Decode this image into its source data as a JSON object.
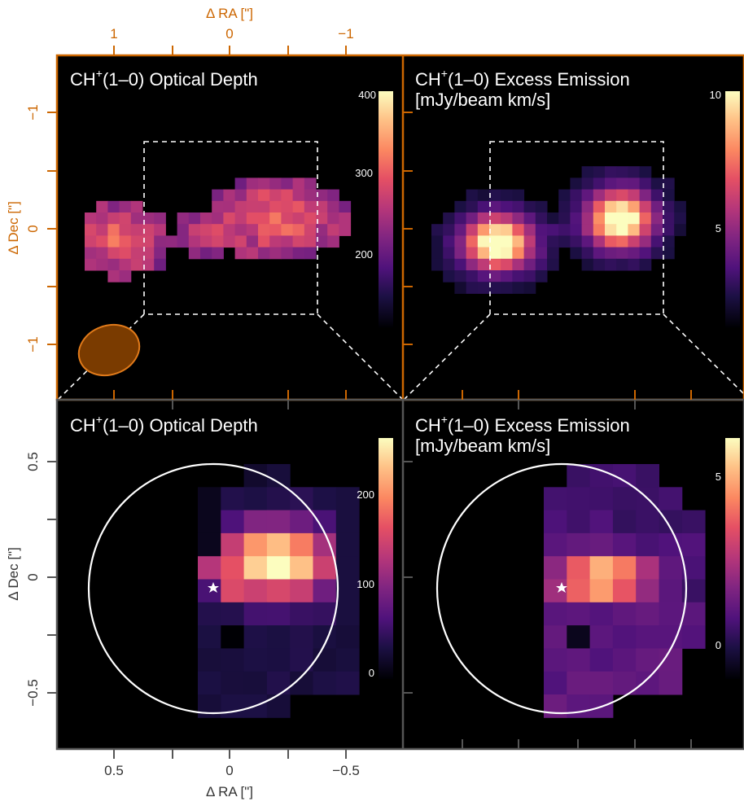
{
  "colors": {
    "top_axis": "#cc6600",
    "bottom_axis": "#555555",
    "background": "#000000",
    "beam_fill": "#7a3b00",
    "beam_edge": "#e07a1a"
  },
  "chart_data": [
    {
      "type": "heatmap",
      "title": "CH⁺(1–0) Optical Depth",
      "title_main": "CH",
      "title_sup": "+",
      "title_rest": "(1–0) Optical Depth",
      "xlabel": "Δ RA [\"]",
      "ylabel": "Δ Dec [\"]",
      "x_ticks": [
        "1",
        "0",
        "−1"
      ],
      "y_ticks": [
        "−1",
        "0",
        "−1"
      ],
      "colorbar": {
        "colormap": "magma",
        "range": [
          100,
          400
        ],
        "ticks": [
          "400",
          "300",
          "200"
        ]
      },
      "features": [
        "dashed zoom box",
        "synthesized beam ellipse (lower left)"
      ]
    },
    {
      "type": "heatmap",
      "title": "CH⁺(1–0) Excess Emission [mJy/beam km/s]",
      "title_main": "CH",
      "title_sup": "+",
      "title_rest": "(1–0) Excess Emission",
      "title_line2": "[mJy/beam km/s]",
      "colorbar": {
        "colormap": "magma",
        "range": [
          0,
          10
        ],
        "ticks": [
          "10",
          "5"
        ]
      },
      "features": [
        "dashed zoom box"
      ]
    },
    {
      "type": "heatmap",
      "title": "CH⁺(1–0) Optical Depth",
      "title_main": "CH",
      "title_sup": "+",
      "title_rest": "(1–0) Optical Depth",
      "xlabel": "Δ RA [\"]",
      "ylabel": "Δ Dec [\"]",
      "x_ticks": [
        "0.5",
        "0",
        "−0.5"
      ],
      "y_ticks": [
        "0.5",
        "0",
        "−0.5"
      ],
      "colorbar": {
        "colormap": "magma",
        "range": [
          0,
          250
        ],
        "ticks": [
          "200",
          "100",
          "0"
        ]
      },
      "features": [
        "white circle aperture",
        "central star marker"
      ]
    },
    {
      "type": "heatmap",
      "title": "CH⁺(1–0) Excess Emission [mJy/beam km/s]",
      "title_main": "CH",
      "title_sup": "+",
      "title_rest": "(1–0) Excess Emission",
      "title_line2": "[mJy/beam km/s]",
      "colorbar": {
        "colormap": "magma",
        "range": [
          -1,
          6
        ],
        "ticks": [
          "5",
          "0"
        ]
      },
      "features": [
        "white circle aperture",
        "central star marker"
      ]
    }
  ]
}
